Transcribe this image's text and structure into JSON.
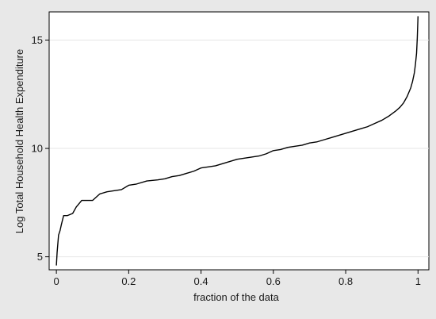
{
  "chart_data": {
    "type": "line",
    "title": "",
    "xlabel": "fraction of the data",
    "ylabel": "Log Total Household Health Expenditure",
    "xlim": [
      -0.02,
      1.03
    ],
    "ylim": [
      4.4,
      16.3
    ],
    "x_ticks": [
      0,
      0.2,
      0.4,
      0.6,
      0.8,
      1
    ],
    "x_tick_labels": [
      "0",
      "0.2",
      "0.4",
      "0.6",
      "0.8",
      "1"
    ],
    "y_ticks": [
      5,
      10,
      15
    ],
    "y_tick_labels": [
      "5",
      "10",
      "15"
    ],
    "grid": "horizontal",
    "legend": "none",
    "colors": {
      "background": "#e8e8e8",
      "plot_area": "#ffffff",
      "line": "#000000",
      "grid": "#e6e6e6"
    },
    "series": [
      {
        "x": [
          0.0,
          0.002,
          0.004,
          0.006,
          0.01,
          0.014,
          0.02,
          0.03,
          0.045,
          0.055,
          0.07,
          0.1,
          0.12,
          0.14,
          0.16,
          0.18,
          0.2,
          0.22,
          0.25,
          0.28,
          0.3,
          0.32,
          0.34,
          0.36,
          0.38,
          0.4,
          0.42,
          0.44,
          0.46,
          0.48,
          0.5,
          0.52,
          0.54,
          0.56,
          0.58,
          0.6,
          0.62,
          0.64,
          0.66,
          0.68,
          0.7,
          0.72,
          0.74,
          0.76,
          0.78,
          0.8,
          0.82,
          0.84,
          0.86,
          0.88,
          0.9,
          0.92,
          0.94,
          0.95,
          0.96,
          0.97,
          0.98,
          0.985,
          0.99,
          0.993,
          0.996,
          0.998,
          1.0
        ],
        "y": [
          4.6,
          5.2,
          5.6,
          6.0,
          6.2,
          6.5,
          6.9,
          6.9,
          7.0,
          7.3,
          7.6,
          7.6,
          7.9,
          8.0,
          8.05,
          8.1,
          8.3,
          8.35,
          8.5,
          8.55,
          8.6,
          8.7,
          8.75,
          8.85,
          8.95,
          9.1,
          9.15,
          9.2,
          9.3,
          9.4,
          9.5,
          9.55,
          9.6,
          9.65,
          9.75,
          9.9,
          9.95,
          10.05,
          10.1,
          10.15,
          10.25,
          10.3,
          10.4,
          10.5,
          10.6,
          10.7,
          10.8,
          10.9,
          11.0,
          11.15,
          11.3,
          11.5,
          11.75,
          11.9,
          12.1,
          12.4,
          12.8,
          13.1,
          13.5,
          13.9,
          14.4,
          15.1,
          16.1
        ]
      }
    ]
  }
}
